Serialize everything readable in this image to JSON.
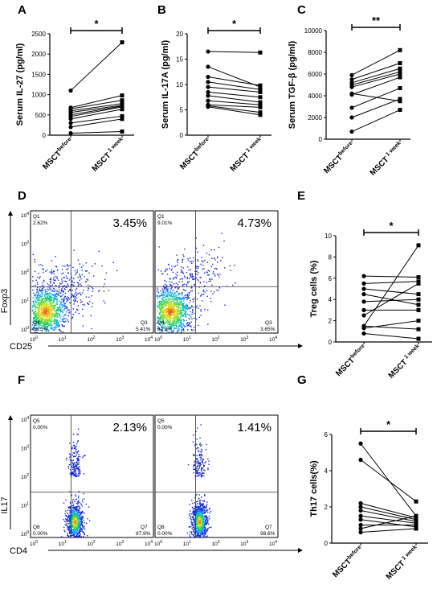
{
  "chart_data": [
    {
      "panel": "A",
      "type": "paired-dot",
      "ylabel": "Serum IL-27 (pg/ml)",
      "categories": [
        "MSCT",
        "MSCT"
      ],
      "category_superscripts": [
        "before",
        "1 week"
      ],
      "ylim": [
        0,
        2500
      ],
      "yticks": [
        "0",
        "500",
        "1000",
        "1500",
        "2000",
        "2500"
      ],
      "significance": "*",
      "pairs": [
        [
          1100,
          2290
        ],
        [
          680,
          980
        ],
        [
          650,
          860
        ],
        [
          600,
          780
        ],
        [
          560,
          740
        ],
        [
          500,
          720
        ],
        [
          460,
          700
        ],
        [
          400,
          640
        ],
        [
          300,
          470
        ],
        [
          200,
          400
        ],
        [
          50,
          90
        ]
      ]
    },
    {
      "panel": "B",
      "type": "paired-dot",
      "ylabel": "Serum IL-17A (pg/ml)",
      "categories": [
        "MSCT",
        "MSCT"
      ],
      "category_superscripts": [
        "before",
        "1 week"
      ],
      "ylim": [
        0,
        20
      ],
      "yticks": [
        "0",
        "5",
        "10",
        "15",
        "20"
      ],
      "significance": "*",
      "pairs": [
        [
          16.5,
          16.3
        ],
        [
          13.5,
          9.5
        ],
        [
          11.5,
          9.8
        ],
        [
          10.5,
          9.0
        ],
        [
          9.5,
          8.5
        ],
        [
          8.5,
          7.5
        ],
        [
          7.8,
          6.5
        ],
        [
          6.8,
          6.0
        ],
        [
          6.0,
          5.5
        ],
        [
          5.8,
          4.5
        ],
        [
          5.6,
          4.0
        ]
      ]
    },
    {
      "panel": "C",
      "type": "paired-dot",
      "ylabel": "Serum TGF-β (pg/ml)",
      "categories": [
        "MSCT",
        "MSCT"
      ],
      "category_superscripts": [
        "before",
        "1 week"
      ],
      "ylim": [
        0,
        10000
      ],
      "yticks": [
        "0",
        "2000",
        "4000",
        "6000",
        "8000",
        "10000"
      ],
      "significance": "**",
      "pairs": [
        [
          5900,
          8200
        ],
        [
          5500,
          7000
        ],
        [
          5200,
          6500
        ],
        [
          5000,
          6200
        ],
        [
          4800,
          6000
        ],
        [
          4100,
          5700
        ],
        [
          2900,
          4700
        ],
        [
          2000,
          3700
        ],
        [
          4200,
          3500
        ],
        [
          700,
          2700
        ]
      ]
    },
    {
      "panel": "E",
      "type": "paired-dot",
      "ylabel": "Treg cells (%)",
      "categories": [
        "MSCT",
        "MSCT"
      ],
      "category_superscripts": [
        "before",
        "1 week"
      ],
      "ylim": [
        0,
        10
      ],
      "yticks": [
        "0",
        "2",
        "4",
        "6",
        "8",
        "10"
      ],
      "significance": "*",
      "pairs": [
        [
          1.5,
          9.1
        ],
        [
          6.2,
          6.1
        ],
        [
          5.5,
          5.7
        ],
        [
          5.0,
          4.5
        ],
        [
          4.5,
          3.5
        ],
        [
          3.8,
          4.0
        ],
        [
          3.0,
          3.0
        ],
        [
          2.5,
          5.5
        ],
        [
          1.5,
          1.2
        ],
        [
          1.3,
          2.0
        ],
        [
          0.8,
          0.3
        ]
      ]
    },
    {
      "panel": "G",
      "type": "paired-dot",
      "ylabel": "Th17 cells(%)",
      "categories": [
        "MSCT",
        "MSCT"
      ],
      "category_superscripts": [
        "before",
        "1 week"
      ],
      "ylim": [
        0,
        6
      ],
      "yticks": [
        "0",
        "2",
        "4",
        "6"
      ],
      "significance": "*",
      "pairs": [
        [
          5.5,
          1.5
        ],
        [
          4.6,
          2.3
        ],
        [
          2.2,
          1.4
        ],
        [
          2.0,
          1.3
        ],
        [
          1.8,
          1.2
        ],
        [
          1.5,
          1.1
        ],
        [
          1.3,
          0.9
        ],
        [
          1.0,
          1.0
        ],
        [
          0.8,
          1.5
        ],
        [
          0.6,
          0.8
        ]
      ]
    },
    {
      "panel": "D",
      "type": "flow-scatter",
      "xlabel": "CD25",
      "ylabel": "Foxp3",
      "plots": [
        {
          "big_pct": "3.45%",
          "q1_name": "Q1",
          "q1": "2.62%",
          "q3_name": "Q3",
          "q3": "5.41%",
          "q4_name": "Q4",
          "q4": "88.5%"
        },
        {
          "big_pct": "4.73%",
          "q1_name": "Q1",
          "q1": "9.01%",
          "q3_name": "Q3",
          "q3": "3.65%",
          "q4_name": "Q4",
          "q4": "82.6%"
        }
      ],
      "decades": [
        "10",
        "10",
        "10",
        "10",
        "10"
      ],
      "decade_exponents": [
        "0",
        "1",
        "2",
        "3",
        "4"
      ]
    },
    {
      "panel": "F",
      "type": "flow-scatter",
      "xlabel": "CD4",
      "ylabel": "IL17",
      "plots": [
        {
          "big_pct": "2.13%",
          "q1_name": "Q5",
          "q1": "0.00%",
          "q3_name": "Q7",
          "q3": "97.9%",
          "q4_name": "Q8",
          "q4": "0.00%"
        },
        {
          "big_pct": "1.41%",
          "q1_name": "Q5",
          "q1": "0.00%",
          "q3_name": "Q7",
          "q3": "98.6%",
          "q4_name": "Q8",
          "q4": "0.00%"
        }
      ],
      "decades": [
        "10",
        "10",
        "10",
        "10",
        "10"
      ],
      "decade_exponents": [
        "0",
        "1",
        "2",
        "3",
        "4"
      ]
    }
  ],
  "panel_letters": [
    "A",
    "B",
    "C",
    "D",
    "E",
    "F",
    "G"
  ]
}
